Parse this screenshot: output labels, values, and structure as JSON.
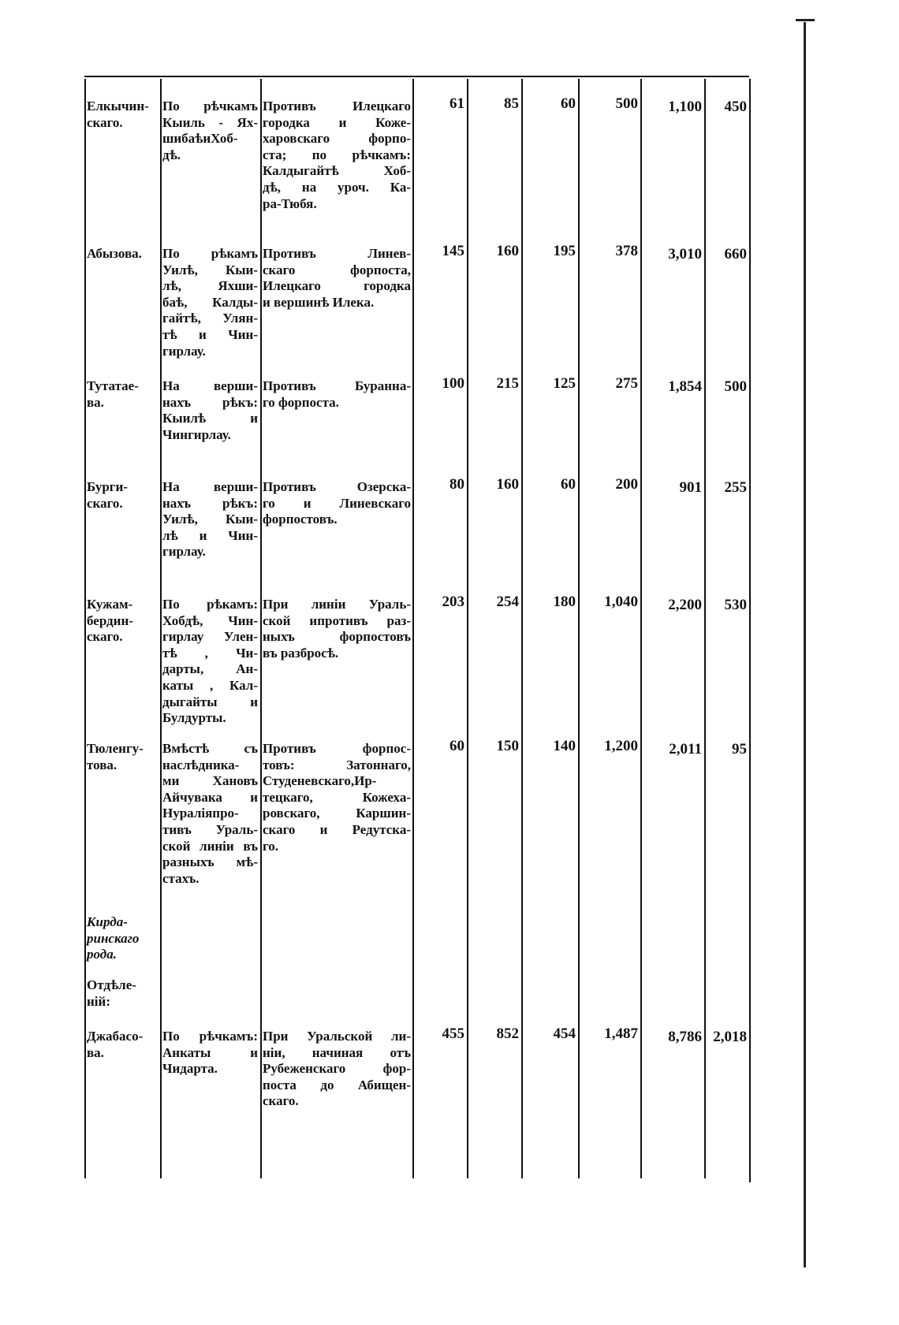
{
  "table": {
    "rows": [
      {
        "name": [
          "Елкычин-",
          "скаго."
        ],
        "area": [
          "По рѣчкамъ",
          "Кыиль - Ях-",
          "шибаѣиХоб-",
          "дѣ."
        ],
        "location": [
          "Противъ Илецкаго",
          "городка и Коже-",
          "харовскаго форпо-",
          "ста; по рѣчкамъ:",
          "Калдыгайтѣ Хоб-",
          "дѣ, на уроч. Ка-",
          "ра-Тюбя."
        ],
        "values": [
          "61",
          "85",
          "60",
          "500",
          "1,100",
          "450"
        ]
      },
      {
        "name": [
          "Абызова."
        ],
        "area": [
          "По рѣкамъ",
          "Уилѣ, Кыи-",
          "лѣ, Яхши-",
          "баѣ, Калды-",
          "гайтѣ, Улян-",
          "тѣ и Чин-",
          "гирлау."
        ],
        "location": [
          "Противъ Линев-",
          "скаго форпоста,",
          "Илецкаго городка",
          "и вершинѣ Илека."
        ],
        "values": [
          "145",
          "160",
          "195",
          "378",
          "3,010",
          "660"
        ]
      },
      {
        "name": [
          "Тутатае-",
          "ва."
        ],
        "area": [
          "На верши-",
          "нахъ рѣкъ:",
          "Кыилѣ и",
          "Чингирлау."
        ],
        "location": [
          "Противъ Буранна-",
          "го форпоста."
        ],
        "values": [
          "100",
          "215",
          "125",
          "275",
          "1,854",
          "500"
        ]
      },
      {
        "name": [
          "Бурги-",
          "скаго."
        ],
        "area": [
          "На верши-",
          "нахъ рѣкъ:",
          "Уилѣ, Кыи-",
          "лѣ и Чин-",
          "гирлау."
        ],
        "location": [
          "Противъ Озерска-",
          "го и Линевскаго",
          "форпостовъ."
        ],
        "values": [
          "80",
          "160",
          "60",
          "200",
          "901",
          "255"
        ]
      },
      {
        "name": [
          "Кужам-",
          "бердин-",
          "скаго."
        ],
        "area": [
          "По рѣкамъ:",
          "Хобдѣ, Чин-",
          "гирлау Улен-",
          "тѣ , Чи-",
          "дарты, Ан-",
          "каты , Кал-",
          "дыгайты и",
          "Булдурты."
        ],
        "location": [
          "При линіи Ураль-",
          "ской ипротивъ раз-",
          "ныхъ форпостовъ",
          "въ разбросѣ."
        ],
        "values": [
          "203",
          "254",
          "180",
          "1,040",
          "2,200",
          "530"
        ]
      },
      {
        "name": [
          "Тюленгу-",
          "това."
        ],
        "area": [
          "Вмѣстѣ съ",
          "наслѣдника-",
          "ми Хановъ",
          "Айчувака и",
          "Нураліяпро-",
          "тивъ Ураль-",
          "ской линіи въ",
          "разныхъ мѣ-",
          "стахъ."
        ],
        "location": [
          "Противъ форпос-",
          "товъ: Затоннаго,",
          "Студеневскаго,Ир-",
          "тецкаго, Кожеха-",
          "ровскаго, Каршин-",
          "скаго и Редутска-",
          "го."
        ],
        "values": [
          "60",
          "150",
          "140",
          "1,200",
          "2,011",
          "95"
        ]
      },
      {
        "name": [
          "Кирда-",
          "ринскаго",
          "рода."
        ],
        "italic": true,
        "area": [],
        "location": [],
        "values": []
      },
      {
        "name": [
          "Отдѣле-",
          "ній:"
        ],
        "area": [],
        "location": [],
        "values": []
      },
      {
        "name": [
          "Джабасо-",
          "ва."
        ],
        "area": [
          "По рѣчкамъ:",
          "Анкаты и",
          "Чидарта."
        ],
        "location": [
          "При Уральской ли-",
          "ніи, начиная отъ",
          "Рубеженскаго фор-",
          "поста до Абищен-",
          "скаго."
        ],
        "values": [
          "455",
          "852",
          "454",
          "1,487",
          "8,786",
          "2,018"
        ]
      }
    ]
  }
}
